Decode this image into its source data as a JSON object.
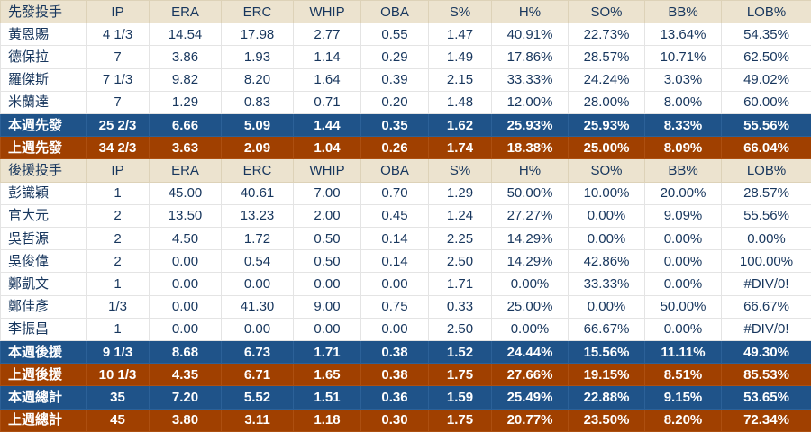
{
  "colors": {
    "header_bg": "#ece3cf",
    "body_text": "#17365d",
    "this_week_bg": "#1f5389",
    "last_week_bg": "#a04000",
    "summary_text": "#ffffff",
    "row_bg": "#ffffff"
  },
  "chart_data": {
    "type": "table",
    "rows": [
      {
        "type": "header",
        "label": "先發投手",
        "cells": [
          "IP",
          "ERA",
          "ERC",
          "WHIP",
          "OBA",
          "S%",
          "H%",
          "SO%",
          "BB%",
          "LOB%"
        ]
      },
      {
        "type": "player",
        "label": "黃恩賜",
        "cells": [
          "4 1/3",
          "14.54",
          "17.98",
          "2.77",
          "0.55",
          "1.47",
          "40.91%",
          "22.73%",
          "13.64%",
          "54.35%"
        ]
      },
      {
        "type": "player",
        "label": "德保拉",
        "cells": [
          "7",
          "3.86",
          "1.93",
          "1.14",
          "0.29",
          "1.49",
          "17.86%",
          "28.57%",
          "10.71%",
          "62.50%"
        ]
      },
      {
        "type": "player",
        "label": "羅傑斯",
        "cells": [
          "7 1/3",
          "9.82",
          "8.20",
          "1.64",
          "0.39",
          "2.15",
          "33.33%",
          "24.24%",
          "3.03%",
          "49.02%"
        ]
      },
      {
        "type": "player",
        "label": "米蘭達",
        "cells": [
          "7",
          "1.29",
          "0.83",
          "0.71",
          "0.20",
          "1.48",
          "12.00%",
          "28.00%",
          "8.00%",
          "60.00%"
        ]
      },
      {
        "type": "week",
        "label": "本週先發",
        "cells": [
          "25 2/3",
          "6.66",
          "5.09",
          "1.44",
          "0.35",
          "1.62",
          "25.93%",
          "25.93%",
          "8.33%",
          "55.56%"
        ]
      },
      {
        "type": "lastweek",
        "label": "上週先發",
        "cells": [
          "34 2/3",
          "3.63",
          "2.09",
          "1.04",
          "0.26",
          "1.74",
          "18.38%",
          "25.00%",
          "8.09%",
          "66.04%"
        ]
      },
      {
        "type": "header",
        "label": "後援投手",
        "cells": [
          "IP",
          "ERA",
          "ERC",
          "WHIP",
          "OBA",
          "S%",
          "H%",
          "SO%",
          "BB%",
          "LOB%"
        ]
      },
      {
        "type": "player",
        "label": "彭識穎",
        "cells": [
          "1",
          "45.00",
          "40.61",
          "7.00",
          "0.70",
          "1.29",
          "50.00%",
          "10.00%",
          "20.00%",
          "28.57%"
        ]
      },
      {
        "type": "player",
        "label": "官大元",
        "cells": [
          "2",
          "13.50",
          "13.23",
          "2.00",
          "0.45",
          "1.24",
          "27.27%",
          "0.00%",
          "9.09%",
          "55.56%"
        ]
      },
      {
        "type": "player",
        "label": "吳哲源",
        "cells": [
          "2",
          "4.50",
          "1.72",
          "0.50",
          "0.14",
          "2.25",
          "14.29%",
          "0.00%",
          "0.00%",
          "0.00%"
        ]
      },
      {
        "type": "player",
        "label": "吳俊偉",
        "cells": [
          "2",
          "0.00",
          "0.54",
          "0.50",
          "0.14",
          "2.50",
          "14.29%",
          "42.86%",
          "0.00%",
          "100.00%"
        ]
      },
      {
        "type": "player",
        "label": "鄭凱文",
        "cells": [
          "1",
          "0.00",
          "0.00",
          "0.00",
          "0.00",
          "1.71",
          "0.00%",
          "33.33%",
          "0.00%",
          "#DIV/0!"
        ]
      },
      {
        "type": "player",
        "label": "鄭佳彥",
        "cells": [
          "1/3",
          "0.00",
          "41.30",
          "9.00",
          "0.75",
          "0.33",
          "25.00%",
          "0.00%",
          "50.00%",
          "66.67%"
        ]
      },
      {
        "type": "player",
        "label": "李振昌",
        "cells": [
          "1",
          "0.00",
          "0.00",
          "0.00",
          "0.00",
          "2.50",
          "0.00%",
          "66.67%",
          "0.00%",
          "#DIV/0!"
        ]
      },
      {
        "type": "week",
        "label": "本週後援",
        "cells": [
          "9 1/3",
          "8.68",
          "6.73",
          "1.71",
          "0.38",
          "1.52",
          "24.44%",
          "15.56%",
          "11.11%",
          "49.30%"
        ]
      },
      {
        "type": "lastweek",
        "label": "上週後援",
        "cells": [
          "10 1/3",
          "4.35",
          "6.71",
          "1.65",
          "0.38",
          "1.75",
          "27.66%",
          "19.15%",
          "8.51%",
          "85.53%"
        ]
      },
      {
        "type": "week",
        "label": "本週總計",
        "cells": [
          "35",
          "7.20",
          "5.52",
          "1.51",
          "0.36",
          "1.59",
          "25.49%",
          "22.88%",
          "9.15%",
          "53.65%"
        ]
      },
      {
        "type": "lastweek",
        "label": "上週總計",
        "cells": [
          "45",
          "3.80",
          "3.11",
          "1.18",
          "0.30",
          "1.75",
          "20.77%",
          "23.50%",
          "8.20%",
          "72.34%"
        ]
      }
    ]
  }
}
